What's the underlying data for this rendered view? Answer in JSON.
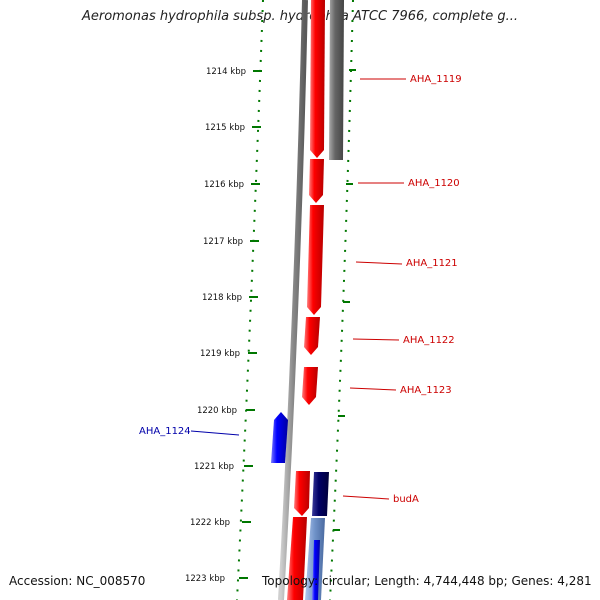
{
  "title": "Aeromonas hydrophila subsp. hydrophila ATCC 7966, complete g...",
  "footer": {
    "accession": "Accession: NC_008570",
    "info": "Topology: circular; Length: 4,744,448 bp; Genes: 4,281"
  },
  "ticks": [
    "1214 kbp",
    "1215 kbp",
    "1216 kbp",
    "1217 kbp",
    "1218 kbp",
    "1219 kbp",
    "1220 kbp",
    "1221 kbp",
    "1222 kbp",
    "1223 kbp"
  ],
  "genes": [
    {
      "label": "AHA_1119",
      "color": "#cc0000"
    },
    {
      "label": "AHA_1120",
      "color": "#cc0000"
    },
    {
      "label": "AHA_1121",
      "color": "#cc0000"
    },
    {
      "label": "AHA_1122",
      "color": "#cc0000"
    },
    {
      "label": "AHA_1123",
      "color": "#cc0000"
    },
    {
      "label": "AHA_1124",
      "color": "#0000aa"
    },
    {
      "label": "budA",
      "color": "#cc0000"
    }
  ],
  "colors": {
    "forward_gene": "#ff0000",
    "reverse_gene": "#0000ff",
    "backbone": "#888888",
    "tick": "#007700",
    "cds_gray": "#666666",
    "navy": "#000066"
  }
}
